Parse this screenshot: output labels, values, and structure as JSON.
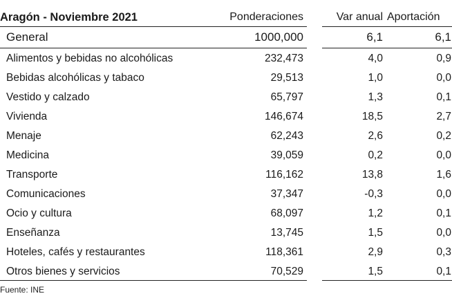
{
  "table": {
    "title": "Aragón - Noviembre 2021",
    "headers": {
      "ponderaciones": "Ponderaciones",
      "var_anual": "Var anual",
      "aportacion": "Aportación"
    },
    "general": {
      "name": "General",
      "ponderacion": "1000,000",
      "var_anual": "6,1",
      "aportacion": "6,1"
    },
    "rows": [
      {
        "name": "Alimentos y bebidas no alcohólicas",
        "ponderacion": "232,473",
        "var_anual": "4,0",
        "aportacion": "0,9"
      },
      {
        "name": "Bebidas alcohólicas y tabaco",
        "ponderacion": "29,513",
        "var_anual": "1,0",
        "aportacion": "0,0"
      },
      {
        "name": "Vestido y calzado",
        "ponderacion": "65,797",
        "var_anual": "1,3",
        "aportacion": "0,1"
      },
      {
        "name": "Vivienda",
        "ponderacion": "146,674",
        "var_anual": "18,5",
        "aportacion": "2,7"
      },
      {
        "name": "Menaje",
        "ponderacion": "62,243",
        "var_anual": "2,6",
        "aportacion": "0,2"
      },
      {
        "name": "Medicina",
        "ponderacion": "39,059",
        "var_anual": "0,2",
        "aportacion": "0,0"
      },
      {
        "name": "Transporte",
        "ponderacion": "116,162",
        "var_anual": "13,8",
        "aportacion": "1,6"
      },
      {
        "name": "Comunicaciones",
        "ponderacion": "37,347",
        "var_anual": "-0,3",
        "aportacion": "0,0"
      },
      {
        "name": "Ocio y cultura",
        "ponderacion": "68,097",
        "var_anual": "1,2",
        "aportacion": "0,1"
      },
      {
        "name": "Enseñanza",
        "ponderacion": "13,745",
        "var_anual": "1,5",
        "aportacion": "0,0"
      },
      {
        "name": "Hoteles, cafés y restaurantes",
        "ponderacion": "118,361",
        "var_anual": "2,9",
        "aportacion": "0,3"
      },
      {
        "name": "Otros bienes y servicios",
        "ponderacion": "70,529",
        "var_anual": "1,5",
        "aportacion": "0,1"
      }
    ]
  },
  "footer": {
    "source": "Fuente: INE"
  }
}
